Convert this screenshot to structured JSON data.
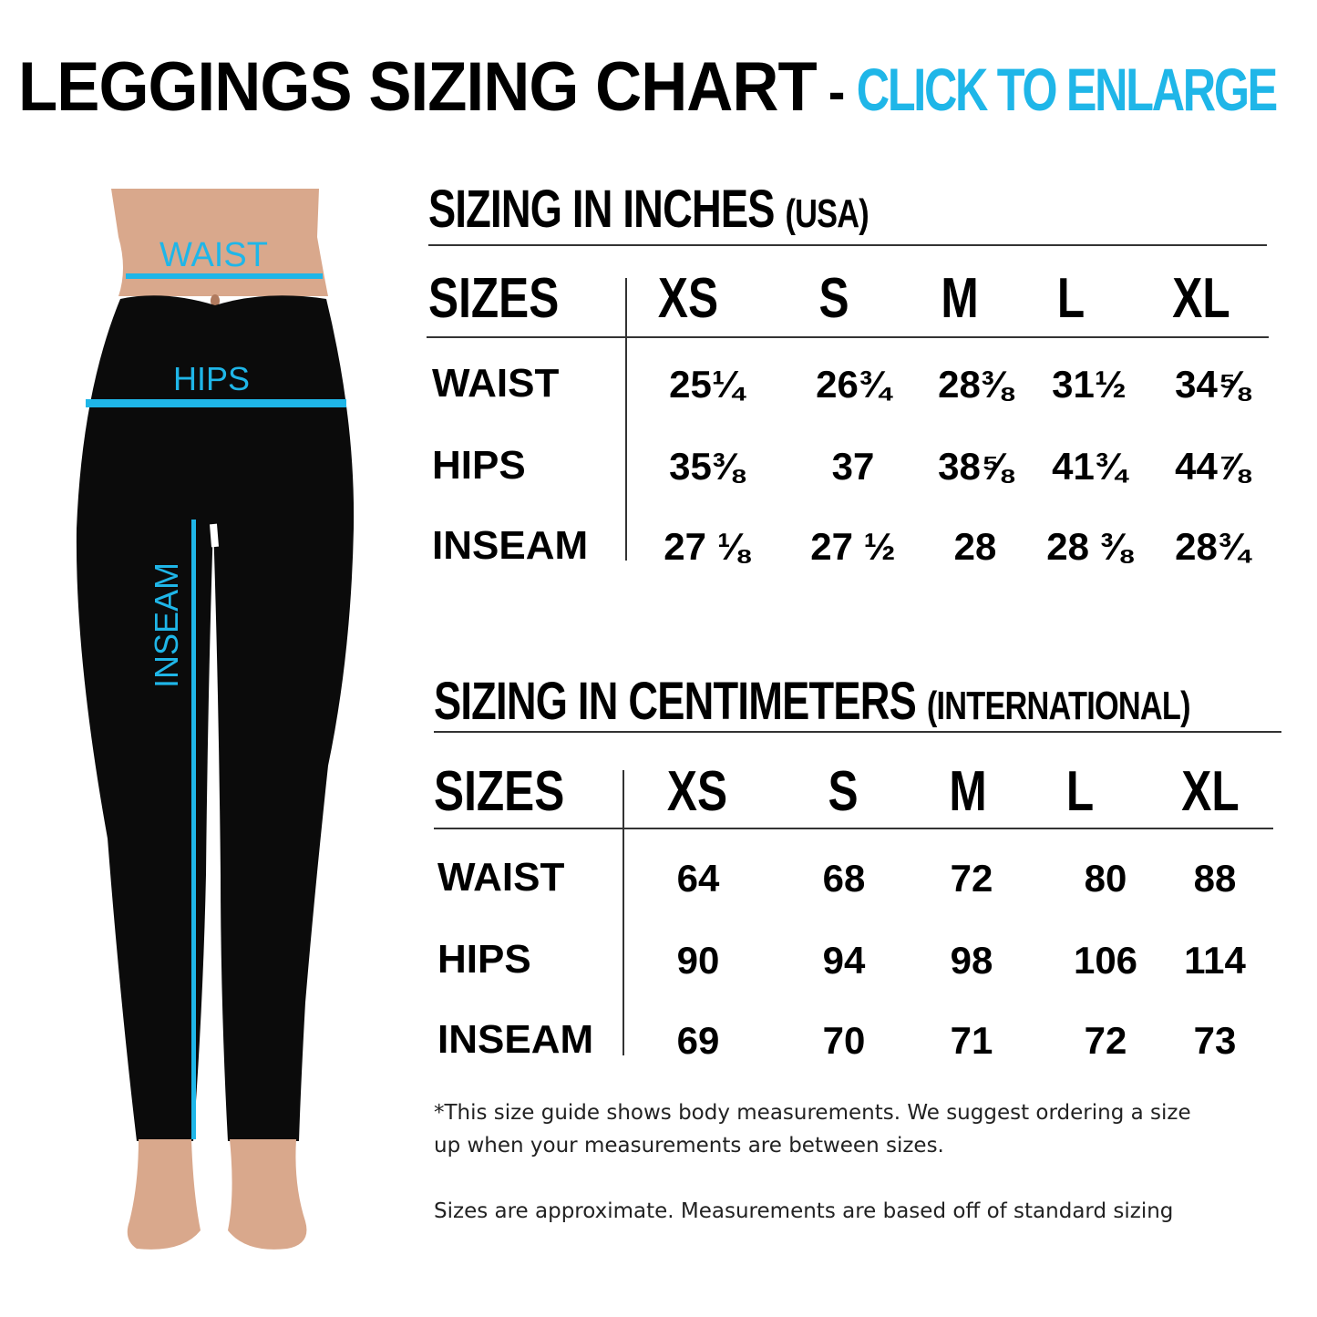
{
  "header": {
    "title": "LEGGINGS SIZING CHART",
    "separator": "-",
    "enlarge_link": "CLICK TO ENLARGE",
    "accent_color": "#1fb6e8"
  },
  "figure": {
    "waist_label": "WAIST",
    "hips_label": "HIPS",
    "inseam_label": "INSEAM"
  },
  "inches": {
    "title": "SIZING IN INCHES",
    "subtitle": "(USA)",
    "corner": "SIZES",
    "sizes": [
      "XS",
      "S",
      "M",
      "L",
      "XL"
    ],
    "rows": [
      {
        "label": "WAIST",
        "values": [
          "25¼",
          "26¾",
          "28⅜",
          "31½",
          "34⅝"
        ]
      },
      {
        "label": "HIPS",
        "values": [
          "35⅜",
          "37",
          "38⅝",
          "41¾",
          "44⅞"
        ]
      },
      {
        "label": "INSEAM",
        "values": [
          "27 ⅛",
          "27 ½",
          "28",
          "28 ⅜",
          "28¾"
        ]
      }
    ]
  },
  "centimeters": {
    "title": "SIZING IN CENTIMETERS",
    "subtitle": "(INTERNATIONAL)",
    "corner": "SIZES",
    "sizes": [
      "XS",
      "S",
      "M",
      "L",
      "XL"
    ],
    "rows": [
      {
        "label": "WAIST",
        "values": [
          "64",
          "68",
          "72",
          "80",
          "88"
        ]
      },
      {
        "label": "HIPS",
        "values": [
          "90",
          "94",
          "98",
          "106",
          "114"
        ]
      },
      {
        "label": "INSEAM",
        "values": [
          "69",
          "70",
          "71",
          "72",
          "73"
        ]
      }
    ]
  },
  "notes": {
    "line1": "*This size guide shows body measurements. We suggest ordering a size",
    "line2": "up when your measurements are between sizes.",
    "line3": "Sizes are approximate. Measurements are based off of standard sizing"
  }
}
